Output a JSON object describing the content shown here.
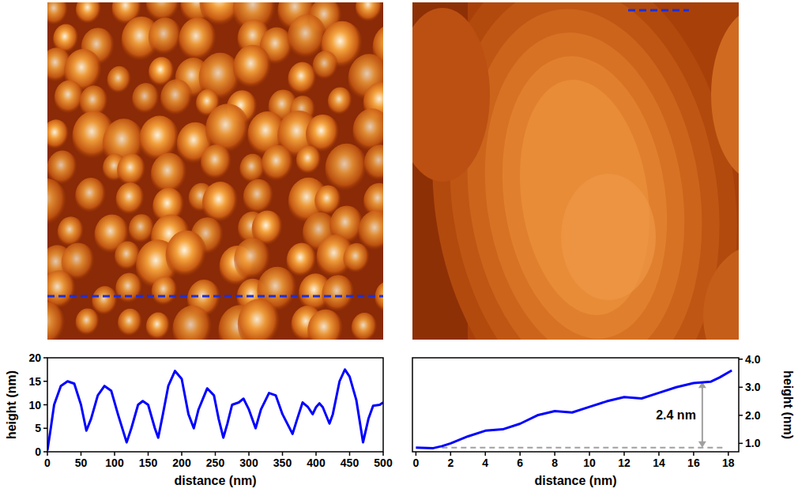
{
  "chart_data": [
    {
      "type": "line",
      "x_label": "distance (nm)",
      "y_label": "height (nm)",
      "x": [
        0,
        5,
        10,
        20,
        30,
        40,
        50,
        58,
        65,
        75,
        85,
        95,
        105,
        118,
        125,
        135,
        142,
        150,
        160,
        165,
        172,
        180,
        190,
        200,
        210,
        218,
        225,
        238,
        248,
        255,
        262,
        268,
        275,
        285,
        292,
        300,
        310,
        318,
        330,
        340,
        350,
        365,
        372,
        380,
        388,
        395,
        400,
        405,
        410,
        420,
        425,
        435,
        443,
        450,
        460,
        470,
        478,
        485,
        495,
        500
      ],
      "values": [
        0.3,
        5,
        10,
        14,
        15,
        14.5,
        10,
        4.5,
        7,
        12,
        14,
        13,
        8,
        2,
        5,
        10,
        10.8,
        10,
        5,
        3,
        8,
        14,
        17.2,
        15.5,
        8,
        5,
        9,
        13.5,
        12,
        7,
        3,
        6,
        10,
        10.5,
        11.3,
        9,
        5,
        9,
        12.5,
        12,
        8,
        3.8,
        7,
        10.5,
        9.5,
        8,
        9.5,
        10.3,
        9.5,
        6,
        8,
        15,
        17.5,
        16,
        11,
        2,
        7,
        9.8,
        10,
        10.5
      ],
      "color": "#0000ff",
      "xlim": [
        0,
        500
      ],
      "xticks": [
        0,
        50,
        100,
        150,
        200,
        250,
        300,
        350,
        400,
        450,
        500
      ],
      "ylim": [
        0,
        20
      ],
      "yticks": [
        0,
        5,
        10,
        15,
        20
      ]
    },
    {
      "type": "line",
      "x_label": "distance (nm)",
      "y_label": "height (nm)",
      "x": [
        0,
        1,
        1.5,
        2,
        3,
        4,
        5,
        6,
        7,
        8,
        9,
        10,
        11,
        12,
        13,
        14,
        15,
        16,
        17,
        17.5,
        18.2
      ],
      "values": [
        0.85,
        0.83,
        0.9,
        1.0,
        1.25,
        1.45,
        1.5,
        1.7,
        2.0,
        2.15,
        2.1,
        2.3,
        2.5,
        2.65,
        2.6,
        2.8,
        3.0,
        3.15,
        3.2,
        3.35,
        3.6
      ],
      "color": "#0000ff",
      "xlim": [
        -0.2,
        18.6
      ],
      "xticks": [
        0,
        2,
        4,
        6,
        8,
        10,
        12,
        14,
        16,
        18
      ],
      "ylim": [
        0.7,
        4.05
      ],
      "yticks": [
        {
          "value": 1,
          "label": "1.0"
        },
        {
          "value": 2,
          "label": "2.0"
        },
        {
          "value": 3,
          "label": "3.0"
        },
        {
          "value": 4,
          "label": "4.0"
        }
      ],
      "annotations": [
        {
          "text": "2.4 nm",
          "x": 16.5,
          "y_from": 0.85,
          "y_to": 3.2,
          "line_x": [
            1.5,
            17.7
          ]
        }
      ]
    }
  ]
}
